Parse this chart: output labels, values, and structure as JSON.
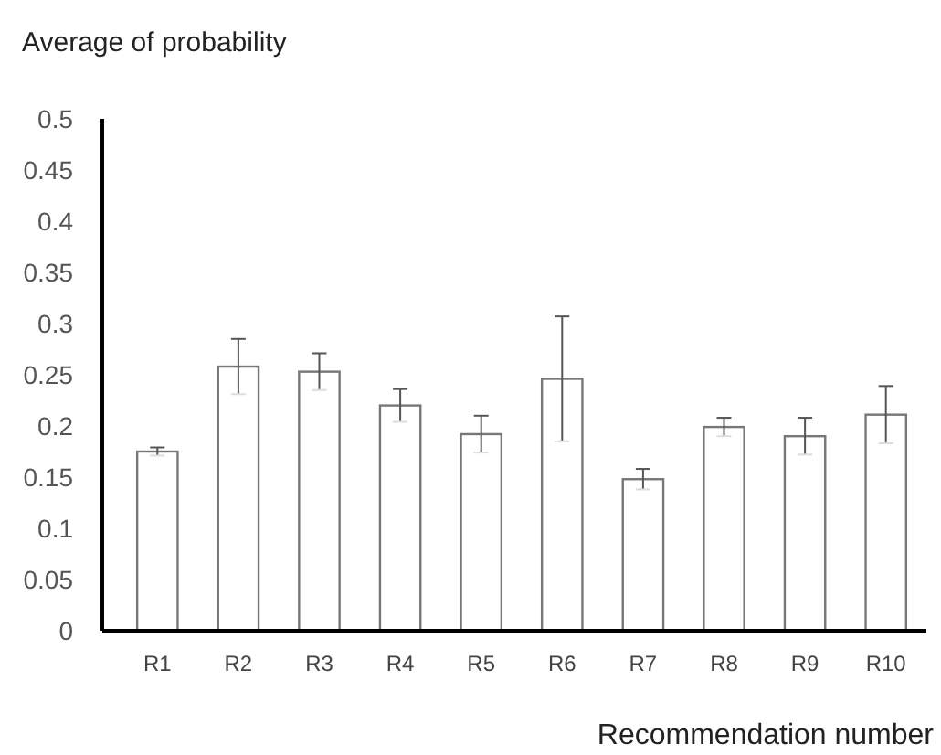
{
  "chart_data": {
    "type": "bar",
    "ylabel": "Average of probability",
    "xlabel": "Recommendation number",
    "categories": [
      "R1",
      "R2",
      "R3",
      "R4",
      "R5",
      "R6",
      "R7",
      "R8",
      "R9",
      "R10"
    ],
    "values": [
      0.175,
      0.258,
      0.253,
      0.22,
      0.192,
      0.246,
      0.148,
      0.199,
      0.19,
      0.211
    ],
    "errors": [
      0.004,
      0.027,
      0.018,
      0.016,
      0.018,
      0.061,
      0.01,
      0.009,
      0.018,
      0.028
    ],
    "color": "#ffffff",
    "ylim": [
      0,
      0.5
    ],
    "yticks": [
      0,
      0.05,
      0.1,
      0.15,
      0.2,
      0.25,
      0.3,
      0.35,
      0.4,
      0.45,
      0.5
    ],
    "grid": false
  }
}
